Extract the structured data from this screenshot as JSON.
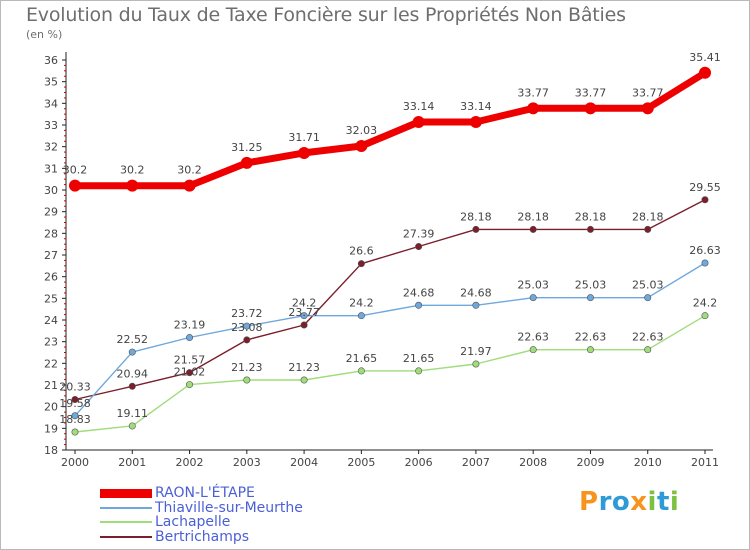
{
  "title": "Evolution du Taux de Taxe Foncière sur les Propriétés Non Bâties",
  "unit_label": "(en %)",
  "logo": {
    "letters": [
      "P",
      "r",
      "o",
      "x",
      "i",
      "t",
      "i"
    ],
    "colors": [
      "#f7941d",
      "#2e9bd6",
      "#2e9bd6",
      "#f7941d",
      "#7cc242",
      "#2e9bd6",
      "#7cc242"
    ]
  },
  "chart_data": {
    "type": "line",
    "title": "Evolution du Taux de Taxe Foncière sur les Propriétés Non Bâties",
    "ylabel": "(en %)",
    "xlabel": "",
    "x": [
      "2000",
      "2001",
      "2002",
      "2003",
      "2004",
      "2005",
      "2006",
      "2007",
      "2008",
      "2009",
      "2010",
      "2011"
    ],
    "y_ticks": [
      18,
      19,
      20,
      21,
      22,
      23,
      24,
      25,
      26,
      27,
      28,
      29,
      30,
      31,
      32,
      33,
      34,
      35,
      36
    ],
    "ylim": [
      18,
      36
    ],
    "grid": false,
    "legend_position": "bottom-left",
    "series": [
      {
        "name": "RAON-L'ÉTAPE",
        "color": "#ee0000",
        "values": [
          30.2,
          30.2,
          30.2,
          31.25,
          31.71,
          32.03,
          33.14,
          33.14,
          33.77,
          33.77,
          33.77,
          35.41
        ],
        "labels": [
          "30.2",
          "30.2",
          "30.2",
          "31.25",
          "31.71",
          "32.03",
          "33.14",
          "33.14",
          "33.77",
          "33.77",
          "33.77",
          "35.41"
        ]
      },
      {
        "name": "Thiaville-sur-Meurthe",
        "color": "#6fa8dc",
        "values": [
          19.58,
          22.52,
          23.19,
          23.72,
          24.2,
          24.2,
          24.68,
          24.68,
          25.03,
          25.03,
          25.03,
          26.63
        ],
        "labels": [
          "19.58",
          "22.52",
          "23.19",
          "23.72",
          "24.2",
          "24.2",
          "24.68",
          "24.68",
          "25.03",
          "25.03",
          "25.03",
          "26.63"
        ]
      },
      {
        "name": "Lachapelle",
        "color": "#9fdc7a",
        "values": [
          18.83,
          19.11,
          21.02,
          21.23,
          21.23,
          21.65,
          21.65,
          21.97,
          22.63,
          22.63,
          22.63,
          24.2
        ],
        "labels": [
          "18.83",
          "19.11",
          "21.02",
          "21.23",
          "21.23",
          "21.65",
          "21.65",
          "21.97",
          "22.63",
          "22.63",
          "22.63",
          "24.2"
        ]
      },
      {
        "name": "Bertrichamps",
        "color": "#7a1f2b",
        "values": [
          20.33,
          20.94,
          21.57,
          23.08,
          23.77,
          26.6,
          27.39,
          28.18,
          28.18,
          28.18,
          28.18,
          29.55
        ],
        "labels": [
          "20.33",
          "20.94",
          "21.57",
          "23.08",
          "23.77",
          "26.6",
          "27.39",
          "28.18",
          "28.18",
          "28.18",
          "28.18",
          "29.55"
        ]
      }
    ]
  }
}
